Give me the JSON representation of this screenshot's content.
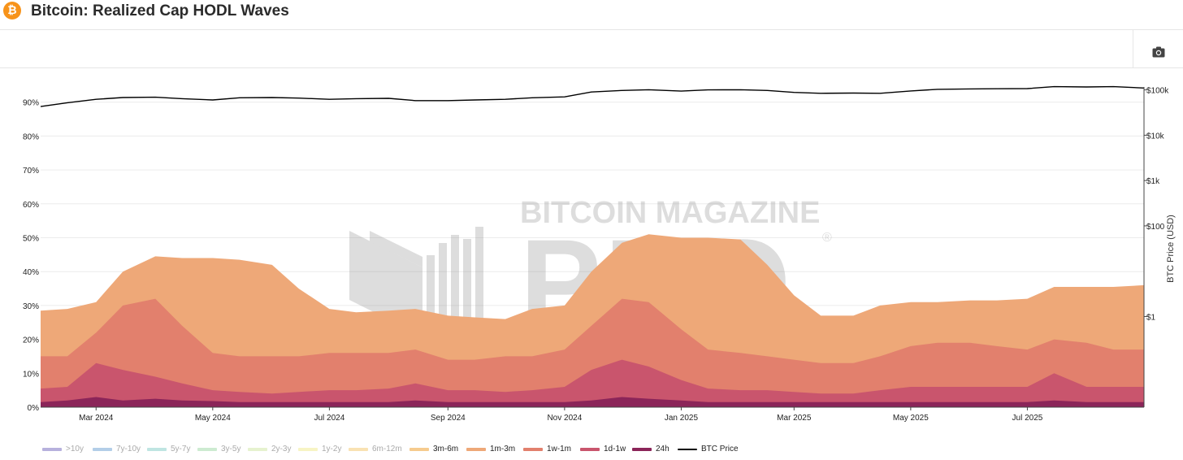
{
  "header": {
    "title": "Bitcoin: Realized Cap HODL Waves",
    "logo_glyph": "₿"
  },
  "toolbar": {
    "camera_icon": "camera-icon"
  },
  "watermark": {
    "line1": "BITCOIN MAGAZINE",
    "line2": "PRO",
    "mark": "®"
  },
  "chart_data": {
    "type": "area",
    "title": "Bitcoin: Realized Cap HODL Waves",
    "xlabel": "",
    "ylabel": "",
    "y2label": "BTC Price (USD)",
    "x_range": [
      "2024-02-01",
      "2025-08-31"
    ],
    "ylim": [
      0,
      100
    ],
    "y2_scale": "log",
    "y2lim": [
      0.01,
      300000
    ],
    "x_ticks": [
      {
        "date": "2024-03-01",
        "label": "Mar 2024"
      },
      {
        "date": "2024-05-01",
        "label": "May 2024"
      },
      {
        "date": "2024-07-01",
        "label": "Jul 2024"
      },
      {
        "date": "2024-09-01",
        "label": "Sep 2024"
      },
      {
        "date": "2024-11-01",
        "label": "Nov 2024"
      },
      {
        "date": "2025-01-01",
        "label": "Jan 2025"
      },
      {
        "date": "2025-03-01",
        "label": "Mar 2025"
      },
      {
        "date": "2025-05-01",
        "label": "May 2025"
      },
      {
        "date": "2025-07-01",
        "label": "Jul 2025"
      }
    ],
    "y_ticks": [
      {
        "value": 0,
        "label": "0%"
      },
      {
        "value": 10,
        "label": "10%"
      },
      {
        "value": 20,
        "label": "20%"
      },
      {
        "value": 30,
        "label": "30%"
      },
      {
        "value": 40,
        "label": "40%"
      },
      {
        "value": 50,
        "label": "50%"
      },
      {
        "value": 60,
        "label": "60%"
      },
      {
        "value": 70,
        "label": "70%"
      },
      {
        "value": 80,
        "label": "80%"
      },
      {
        "value": 90,
        "label": "90%"
      }
    ],
    "y2_ticks": [
      {
        "value": 1,
        "label": "$1"
      },
      {
        "value": 100,
        "label": "$100"
      },
      {
        "value": 1000,
        "label": "$1k"
      },
      {
        "value": 10000,
        "label": "$10k"
      },
      {
        "value": 100000,
        "label": "$100k"
      }
    ],
    "grid": true,
    "legend_position": "bottom",
    "dates": [
      "2024-02-01",
      "2024-02-15",
      "2024-03-01",
      "2024-03-15",
      "2024-04-01",
      "2024-04-15",
      "2024-05-01",
      "2024-05-15",
      "2024-06-01",
      "2024-06-15",
      "2024-07-01",
      "2024-07-15",
      "2024-08-01",
      "2024-08-15",
      "2024-09-01",
      "2024-09-15",
      "2024-10-01",
      "2024-10-15",
      "2024-11-01",
      "2024-11-15",
      "2024-12-01",
      "2024-12-15",
      "2025-01-01",
      "2025-01-15",
      "2025-02-01",
      "2025-02-15",
      "2025-03-01",
      "2025-03-15",
      "2025-04-01",
      "2025-04-15",
      "2025-05-01",
      "2025-05-15",
      "2025-06-01",
      "2025-06-15",
      "2025-07-01",
      "2025-07-15",
      "2025-08-01",
      "2025-08-15",
      "2025-08-31"
    ],
    "bands": [
      {
        "name": "24h",
        "color": "#8b2559",
        "values": [
          1.5,
          2,
          3,
          2,
          2.5,
          2,
          1.8,
          1.5,
          1.5,
          1.5,
          1.5,
          1.5,
          1.5,
          2,
          1.5,
          1.5,
          1.5,
          1.5,
          1.5,
          2,
          3,
          2.5,
          2,
          1.5,
          1.5,
          1.5,
          1.5,
          1.5,
          1.5,
          1.5,
          1.5,
          1.5,
          1.5,
          1.5,
          1.5,
          2,
          1.5,
          1.5,
          1.5
        ]
      },
      {
        "name": "1d-1w",
        "color": "#c9556d",
        "values": [
          5.5,
          6,
          13,
          11,
          9,
          7,
          5,
          4.5,
          4,
          4.5,
          5,
          5,
          5.5,
          7,
          5,
          5,
          4.5,
          5,
          6,
          11,
          14,
          12,
          8,
          5.5,
          5,
          5,
          4.5,
          4,
          4,
          5,
          6,
          6,
          6,
          6,
          6,
          10,
          6,
          6,
          6
        ]
      },
      {
        "name": "1w-1m",
        "color": "#e2806d",
        "values": [
          15,
          15,
          22,
          30,
          32,
          24,
          16,
          15,
          15,
          15,
          16,
          16,
          16,
          17,
          14,
          14,
          15,
          15,
          17,
          24,
          32,
          31,
          23,
          17,
          16,
          15,
          14,
          13,
          13,
          15,
          18,
          19,
          19,
          18,
          17,
          20,
          19,
          17,
          17
        ]
      },
      {
        "name": "1m-3m",
        "color": "#eea878",
        "values": [
          28.5,
          29,
          31,
          40,
          44.5,
          44,
          44,
          43.5,
          42,
          35,
          29,
          28,
          28.5,
          29,
          27,
          26.5,
          26,
          29,
          30,
          40,
          48.5,
          51,
          50,
          50,
          49.5,
          42,
          33,
          27,
          27,
          30,
          31,
          31,
          31.5,
          31.5,
          32,
          35.5,
          35.5,
          35.5,
          36
        ]
      },
      {
        "name": "3m-6m",
        "color": "#f6cb8e",
        "values": []
      },
      {
        "name": "6m-12m",
        "color": "#f9e2b3",
        "values": []
      },
      {
        "name": "1y-2y",
        "color": "#f7f4c4",
        "values": []
      },
      {
        "name": "2y-3y",
        "color": "#e6f2cf",
        "values": []
      },
      {
        "name": "3y-5y",
        "color": "#cdebd1",
        "values": []
      },
      {
        "name": "5y-7y",
        "color": "#bfe5e2",
        "values": []
      },
      {
        "name": "7y-10y",
        "color": "#b3cee8",
        "values": []
      },
      {
        "name": ">10y",
        "color": "#b7b1dd",
        "values": []
      }
    ],
    "price_series": {
      "name": "BTC Price",
      "color": "#000000",
      "values": [
        43000,
        52000,
        62000,
        68000,
        69000,
        64000,
        60000,
        67000,
        68000,
        66000,
        62000,
        64000,
        65000,
        58000,
        58000,
        60000,
        62000,
        67000,
        70000,
        90000,
        97000,
        101000,
        94000,
        100000,
        101000,
        97000,
        88000,
        84000,
        85000,
        84000,
        95000,
        103000,
        105000,
        106000,
        107000,
        118000,
        116000,
        118000,
        110000
      ]
    }
  },
  "legend": {
    "items": [
      {
        "label": ">10y",
        "color": "#b7b1dd"
      },
      {
        "label": "7y-10y",
        "color": "#b3cee8"
      },
      {
        "label": "5y-7y",
        "color": "#bfe5e2"
      },
      {
        "label": "3y-5y",
        "color": "#cdebd1"
      },
      {
        "label": "2y-3y",
        "color": "#e6f2cf"
      },
      {
        "label": "1y-2y",
        "color": "#f7f4c4"
      },
      {
        "label": "6m-12m",
        "color": "#f9e2b3"
      },
      {
        "label": "3m-6m",
        "color": "#f6cb8e"
      },
      {
        "label": "1m-3m",
        "color": "#eea878"
      },
      {
        "label": "1w-1m",
        "color": "#e2806d"
      },
      {
        "label": "1d-1w",
        "color": "#c9556d"
      },
      {
        "label": "24h",
        "color": "#8b2559"
      },
      {
        "label": "BTC Price",
        "color": "#000000"
      }
    ]
  }
}
